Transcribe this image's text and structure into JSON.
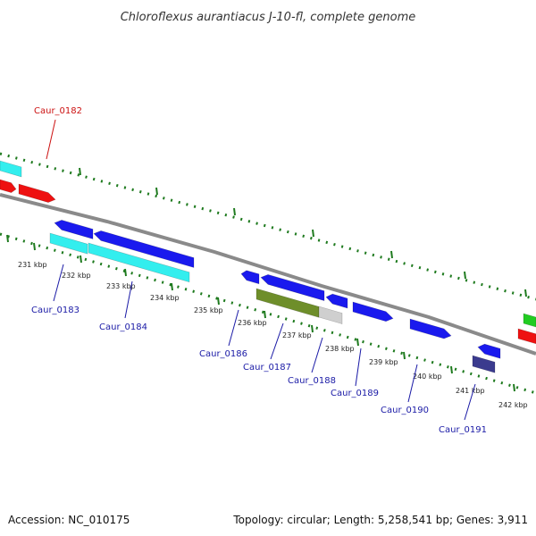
{
  "title": "Chloroflexus aurantiacus J-10-fl, complete genome",
  "footer": {
    "accession": "Accession: NC_010175",
    "summary": "Topology: circular; Length: 5,258,541 bp; Genes: 3,911"
  },
  "colors": {
    "forward_gene": "#1a1aee",
    "reverse_gene": "#ee1111",
    "cds_cyan": "#33eeee",
    "olive": "#6e8e2a",
    "gray_gene": "#cfcfcf",
    "slate": "#3b3b8e",
    "green_gene": "#22cc22",
    "backbone": "#8a8a8a",
    "tick_green": "#1e7a1e",
    "label_blue": "#1a1aa6",
    "label_red": "#cc1111"
  },
  "kbp_ticks": [
    "231 kbp",
    "232 kbp",
    "233 kbp",
    "234 kbp",
    "235 kbp",
    "236 kbp",
    "237 kbp",
    "238 kbp",
    "239 kbp",
    "240 kbp",
    "241 kbp",
    "242 kbp"
  ],
  "genes": [
    {
      "name": "Caur_0182",
      "color": "red"
    },
    {
      "name": "Caur_0183",
      "color": "blue"
    },
    {
      "name": "Caur_0184",
      "color": "blue"
    },
    {
      "name": "Caur_0186",
      "color": "blue"
    },
    {
      "name": "Caur_0187",
      "color": "blue"
    },
    {
      "name": "Caur_0188",
      "color": "blue"
    },
    {
      "name": "Caur_0189",
      "color": "blue"
    },
    {
      "name": "Caur_0190",
      "color": "blue"
    },
    {
      "name": "Caur_0191",
      "color": "blue"
    }
  ]
}
